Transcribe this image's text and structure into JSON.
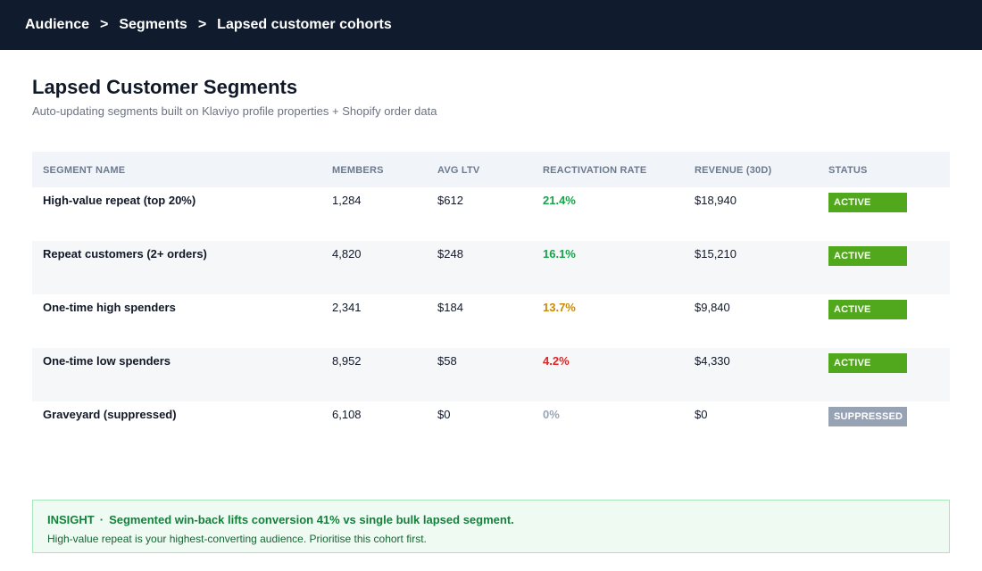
{
  "breadcrumb": {
    "items": [
      "Audience",
      "Segments",
      "Lapsed customer cohorts"
    ],
    "separator": ">"
  },
  "header": {
    "title": "Lapsed Customer Segments",
    "subtitle": "Auto-updating segments built on Klaviyo profile properties + Shopify order data"
  },
  "table": {
    "columns": [
      "SEGMENT NAME",
      "MEMBERS",
      "AVG LTV",
      "REACTIVATION RATE",
      "REVENUE (30D)",
      "STATUS"
    ],
    "rows": [
      {
        "name": "High-value repeat (top 20%)",
        "members": "1,284",
        "avg_ltv": "$612",
        "reactivation_rate": "21.4%",
        "rate_color": "#16a34a",
        "revenue": "$18,940",
        "status": "ACTIVE"
      },
      {
        "name": "Repeat customers (2+ orders)",
        "members": "4,820",
        "avg_ltv": "$248",
        "reactivation_rate": "16.1%",
        "rate_color": "#16a34a",
        "revenue": "$15,210",
        "status": "ACTIVE"
      },
      {
        "name": "One-time high spenders",
        "members": "2,341",
        "avg_ltv": "$184",
        "reactivation_rate": "13.7%",
        "rate_color": "#ca8a04",
        "revenue": "$9,840",
        "status": "ACTIVE"
      },
      {
        "name": "One-time low spenders",
        "members": "8,952",
        "avg_ltv": "$58",
        "reactivation_rate": "4.2%",
        "rate_color": "#dc2626",
        "revenue": "$4,330",
        "status": "ACTIVE"
      },
      {
        "name": "Graveyard (suppressed)",
        "members": "6,108",
        "avg_ltv": "$0",
        "reactivation_rate": "0%",
        "rate_color": "#9aa5b4",
        "revenue": "$0",
        "status": "SUPPRESSED"
      }
    ]
  },
  "insight": {
    "label": "INSIGHT",
    "separator": "·",
    "headline": "Segmented win-back lifts conversion 41% vs single bulk lapsed segment.",
    "detail": "High-value repeat is your highest-converting audience. Prioritise this cohort first."
  },
  "colors": {
    "topbar": "#111b2e",
    "active_badge": "#52a81c",
    "suppressed_badge": "#97a3b5",
    "insight_bg": "#effaf2",
    "insight_border": "#a8e6bb"
  }
}
